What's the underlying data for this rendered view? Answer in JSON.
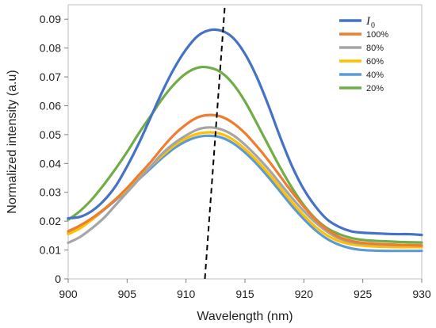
{
  "chart_data": {
    "type": "line",
    "xlabel": "Wavelength (nm)",
    "ylabel": "Normalized intensity (a.u)",
    "xlim": [
      900,
      930
    ],
    "ylim": [
      0,
      0.095
    ],
    "xticks": [
      "900",
      "905",
      "910",
      "915",
      "920",
      "925",
      "930"
    ],
    "yticks": [
      "0",
      "0.01",
      "0.02",
      "0.03",
      "0.04",
      "0.05",
      "0.06",
      "0.07",
      "0.08",
      "0.09"
    ],
    "grid": false,
    "legend_position": "top-right",
    "colors": {
      "I0": "#4472c4",
      "100%": "#ed7d31",
      "80%": "#a5a5a5",
      "60%": "#ffc000",
      "40%": "#5b9bd5",
      "20%": "#70ad47",
      "trend": "#000000"
    },
    "series": [
      {
        "name": "I0",
        "label_main": "I",
        "label_sub": "0",
        "color": "#4472c4",
        "x": [
          900,
          901,
          902,
          903,
          904,
          905,
          906,
          907,
          908,
          909,
          910,
          911,
          912,
          913,
          914,
          915,
          916,
          917,
          918,
          919,
          920,
          921,
          922,
          923,
          924,
          925,
          926,
          927,
          928,
          929,
          930
        ],
        "y": [
          0.021,
          0.0215,
          0.0235,
          0.027,
          0.032,
          0.039,
          0.047,
          0.056,
          0.065,
          0.073,
          0.0795,
          0.0842,
          0.0862,
          0.086,
          0.0835,
          0.078,
          0.07,
          0.06,
          0.049,
          0.039,
          0.031,
          0.025,
          0.0205,
          0.018,
          0.0165,
          0.016,
          0.0158,
          0.0156,
          0.0155,
          0.0155,
          0.0152
        ]
      },
      {
        "name": "100%",
        "color": "#ed7d31",
        "x": [
          900,
          901,
          902,
          903,
          904,
          905,
          906,
          907,
          908,
          909,
          910,
          911,
          912,
          913,
          914,
          915,
          916,
          917,
          918,
          919,
          920,
          921,
          922,
          923,
          924,
          925,
          926,
          927,
          928,
          929,
          930
        ],
        "y": [
          0.0165,
          0.0185,
          0.021,
          0.024,
          0.0275,
          0.0315,
          0.036,
          0.0405,
          0.0455,
          0.05,
          0.0535,
          0.056,
          0.0568,
          0.0562,
          0.054,
          0.0505,
          0.046,
          0.041,
          0.0355,
          0.03,
          0.025,
          0.0205,
          0.017,
          0.0145,
          0.0132,
          0.0125,
          0.0122,
          0.012,
          0.0118,
          0.0117,
          0.0115
        ]
      },
      {
        "name": "80%",
        "color": "#a5a5a5",
        "x": [
          900,
          901,
          902,
          903,
          904,
          905,
          906,
          907,
          908,
          909,
          910,
          911,
          912,
          913,
          914,
          915,
          916,
          917,
          918,
          919,
          920,
          921,
          922,
          923,
          924,
          925,
          926,
          927,
          928,
          929,
          930
        ],
        "y": [
          0.0125,
          0.0145,
          0.0175,
          0.021,
          0.0255,
          0.03,
          0.0345,
          0.039,
          0.0435,
          0.047,
          0.0497,
          0.0518,
          0.0525,
          0.0518,
          0.0498,
          0.0465,
          0.0425,
          0.038,
          0.033,
          0.028,
          0.0235,
          0.0195,
          0.0163,
          0.014,
          0.0128,
          0.0122,
          0.012,
          0.0118,
          0.0117,
          0.0117,
          0.0117
        ]
      },
      {
        "name": "60%",
        "color": "#ffc000",
        "x": [
          900,
          901,
          902,
          903,
          904,
          905,
          906,
          907,
          908,
          909,
          910,
          911,
          912,
          913,
          914,
          915,
          916,
          917,
          918,
          919,
          920,
          921,
          922,
          923,
          924,
          925,
          926,
          927,
          928,
          929,
          930
        ],
        "y": [
          0.0155,
          0.0175,
          0.0205,
          0.024,
          0.0275,
          0.031,
          0.035,
          0.039,
          0.0428,
          0.0462,
          0.0487,
          0.0503,
          0.0508,
          0.0502,
          0.0482,
          0.045,
          0.041,
          0.0365,
          0.0315,
          0.0265,
          0.022,
          0.018,
          0.015,
          0.013,
          0.012,
          0.0115,
          0.0112,
          0.0111,
          0.011,
          0.011,
          0.011
        ]
      },
      {
        "name": "40%",
        "color": "#5b9bd5",
        "x": [
          900,
          901,
          902,
          903,
          904,
          905,
          906,
          907,
          908,
          909,
          910,
          911,
          912,
          913,
          914,
          915,
          916,
          917,
          918,
          919,
          920,
          921,
          922,
          923,
          924,
          925,
          926,
          927,
          928,
          929,
          930
        ],
        "y": [
          0.0158,
          0.0178,
          0.0205,
          0.0238,
          0.0272,
          0.0308,
          0.0345,
          0.0383,
          0.042,
          0.0453,
          0.0477,
          0.0492,
          0.0496,
          0.049,
          0.047,
          0.0438,
          0.0398,
          0.0352,
          0.0302,
          0.0252,
          0.0207,
          0.0168,
          0.0138,
          0.0118,
          0.0106,
          0.01,
          0.0098,
          0.0097,
          0.0097,
          0.0097,
          0.0097
        ]
      },
      {
        "name": "20%",
        "color": "#70ad47",
        "x": [
          900,
          901,
          902,
          903,
          904,
          905,
          906,
          907,
          908,
          909,
          910,
          911,
          912,
          913,
          914,
          915,
          916,
          917,
          918,
          919,
          920,
          921,
          922,
          923,
          924,
          925,
          926,
          927,
          928,
          929,
          930
        ],
        "y": [
          0.0205,
          0.0235,
          0.0275,
          0.0325,
          0.038,
          0.044,
          0.0505,
          0.0565,
          0.0625,
          0.0675,
          0.0712,
          0.0732,
          0.0732,
          0.0715,
          0.0675,
          0.0615,
          0.054,
          0.0462,
          0.0385,
          0.0315,
          0.0255,
          0.0208,
          0.0175,
          0.0155,
          0.0142,
          0.0135,
          0.0132,
          0.013,
          0.0128,
          0.0127,
          0.0126
        ]
      }
    ],
    "trend_line": {
      "style": "dashed",
      "color": "#000000",
      "x": [
        911.6,
        913.3
      ],
      "y": [
        0.0,
        0.095
      ]
    }
  }
}
